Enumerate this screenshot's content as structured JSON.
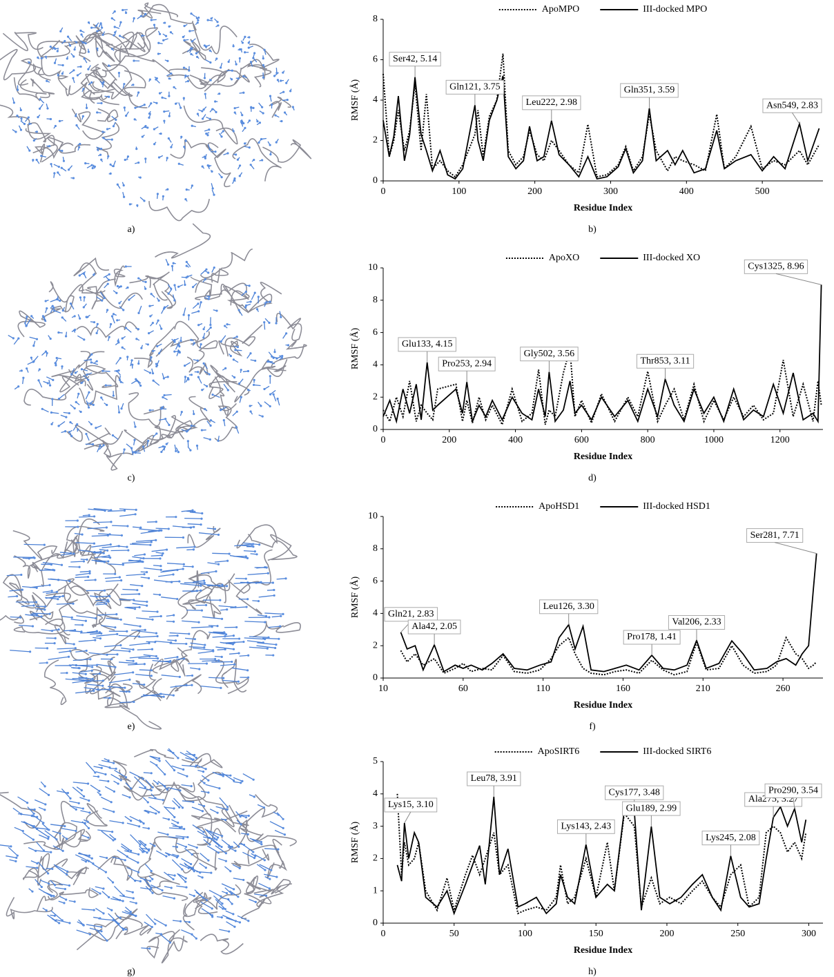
{
  "panel_labels": [
    "a)",
    "b)",
    "c)",
    "d)",
    "e)",
    "f)",
    "g)",
    "h)"
  ],
  "chart_data": [
    {
      "type": "line",
      "xlabel": "Residue Index",
      "ylabel": "RMSF (Å)",
      "xlim": [
        0,
        580
      ],
      "ylim": [
        0,
        8
      ],
      "xticks": [
        0,
        100,
        200,
        300,
        400,
        500
      ],
      "yticks": [
        0,
        2,
        4,
        6,
        8
      ],
      "x": [
        0,
        8,
        14,
        20,
        28,
        35,
        42,
        50,
        57,
        65,
        75,
        85,
        95,
        105,
        121,
        125,
        132,
        140,
        150,
        158,
        165,
        175,
        185,
        193,
        203,
        212,
        222,
        232,
        245,
        258,
        270,
        282,
        295,
        310,
        320,
        330,
        342,
        351,
        360,
        375,
        385,
        395,
        410,
        425,
        440,
        450,
        465,
        485,
        500,
        515,
        530,
        549,
        560,
        575
      ],
      "series": [
        {
          "name": "ApoMPO",
          "color": "#000000",
          "dash": "dotted",
          "values": [
            5.3,
            1.2,
            2.0,
            3.5,
            1.5,
            2.5,
            4.8,
            1.5,
            4.3,
            0.6,
            1.0,
            0.5,
            0.2,
            0.8,
            2.3,
            3.5,
            1.2,
            3.2,
            4.0,
            6.3,
            1.5,
            0.8,
            1.2,
            2.5,
            1.3,
            1.0,
            2.0,
            1.5,
            0.8,
            0.4,
            2.8,
            0.2,
            0.3,
            0.8,
            1.7,
            0.5,
            1.2,
            3.3,
            1.5,
            0.5,
            1.2,
            1.0,
            0.8,
            0.5,
            3.3,
            0.6,
            1.2,
            2.7,
            0.6,
            1.0,
            0.8,
            1.5,
            0.8,
            1.8
          ]
        },
        {
          "name": "III-docked MPO",
          "color": "#000000",
          "dash": "solid",
          "values": [
            3.0,
            1.2,
            2.2,
            4.2,
            1.0,
            2.3,
            5.14,
            2.3,
            1.5,
            0.5,
            1.5,
            0.3,
            0.1,
            0.6,
            3.75,
            2.0,
            1.0,
            3.0,
            4.0,
            5.2,
            1.2,
            0.6,
            1.0,
            2.7,
            1.0,
            1.2,
            2.98,
            1.3,
            0.8,
            0.2,
            1.2,
            0.1,
            0.2,
            0.7,
            1.6,
            0.4,
            1.0,
            3.59,
            1.0,
            1.5,
            0.8,
            1.5,
            0.4,
            0.6,
            2.5,
            0.6,
            1.0,
            1.3,
            0.5,
            1.2,
            0.6,
            2.83,
            1.0,
            2.6
          ]
        }
      ],
      "annotations": [
        {
          "label": "Ser42, 5.14",
          "x": 42,
          "y": 5.14
        },
        {
          "label": "Gln121, 3.75",
          "x": 121,
          "y": 3.75
        },
        {
          "label": "Leu222, 2.98",
          "x": 222,
          "y": 2.98
        },
        {
          "label": "Gln351, 3.59",
          "x": 351,
          "y": 3.59
        },
        {
          "label": "Asn549, 2.83",
          "x": 549,
          "y": 2.83
        }
      ]
    },
    {
      "type": "line",
      "xlabel": "Residue Index",
      "ylabel": "RMSF (Å)",
      "xlim": [
        0,
        1330
      ],
      "ylim": [
        0,
        10
      ],
      "xticks": [
        0,
        200,
        400,
        600,
        800,
        1000,
        1200
      ],
      "yticks": [
        0,
        2,
        4,
        6,
        8,
        10
      ],
      "x": [
        0,
        20,
        40,
        60,
        80,
        100,
        115,
        133,
        150,
        165,
        220,
        240,
        253,
        270,
        290,
        310,
        330,
        360,
        390,
        420,
        450,
        470,
        490,
        502,
        520,
        545,
        565,
        580,
        600,
        630,
        660,
        700,
        740,
        770,
        800,
        830,
        853,
        880,
        910,
        940,
        970,
        1000,
        1030,
        1060,
        1090,
        1120,
        1150,
        1180,
        1210,
        1240,
        1270,
        1300,
        1315,
        1325
      ],
      "series": [
        {
          "name": "ApoXO",
          "color": "#000000",
          "dash": "dotted",
          "values": [
            1.2,
            0.5,
            2.0,
            0.8,
            3.0,
            0.5,
            1.5,
            1.0,
            0.6,
            2.5,
            2.8,
            0.5,
            1.8,
            0.4,
            2.0,
            0.6,
            1.5,
            0.3,
            2.5,
            0.5,
            1.0,
            3.7,
            0.3,
            1.2,
            0.8,
            3.5,
            5.0,
            0.8,
            1.8,
            0.4,
            2.2,
            0.5,
            2.0,
            0.8,
            3.6,
            0.5,
            1.5,
            2.5,
            0.6,
            2.8,
            0.5,
            1.8,
            0.6,
            2.0,
            0.8,
            1.5,
            0.6,
            1.0,
            4.3,
            0.8,
            2.8,
            0.5,
            3.0,
            1.5
          ]
        },
        {
          "name": "III-docked XO",
          "color": "#000000",
          "dash": "solid",
          "values": [
            0.8,
            1.8,
            0.5,
            2.5,
            1.0,
            2.8,
            0.6,
            4.15,
            1.2,
            1.5,
            2.5,
            1.0,
            2.94,
            0.5,
            1.5,
            0.8,
            1.8,
            0.6,
            2.0,
            1.0,
            0.6,
            2.5,
            0.8,
            3.56,
            0.5,
            1.2,
            3.0,
            1.0,
            1.5,
            0.6,
            2.0,
            0.8,
            1.8,
            0.5,
            2.5,
            0.8,
            3.11,
            1.5,
            0.5,
            2.5,
            1.0,
            2.0,
            0.5,
            2.5,
            0.6,
            1.2,
            0.8,
            2.8,
            1.0,
            3.5,
            0.6,
            1.0,
            0.5,
            8.96
          ]
        }
      ],
      "annotations": [
        {
          "label": "Glu133, 4.15",
          "x": 133,
          "y": 4.15
        },
        {
          "label": "Pro253, 2.94",
          "x": 253,
          "y": 2.94
        },
        {
          "label": "Gly502, 3.56",
          "x": 502,
          "y": 3.56
        },
        {
          "label": "Thr853, 3.11",
          "x": 853,
          "y": 3.11
        },
        {
          "label": "Cys1325, 8.96",
          "x": 1325,
          "y": 8.96
        }
      ]
    },
    {
      "type": "line",
      "xlabel": "Residue Index",
      "ylabel": "RMSF (Å)",
      "xlim": [
        10,
        285
      ],
      "ylim": [
        0,
        10
      ],
      "xticks": [
        10,
        60,
        110,
        160,
        210,
        260
      ],
      "yticks": [
        0,
        2,
        4,
        6,
        8,
        10
      ],
      "x": [
        21,
        25,
        30,
        35,
        42,
        48,
        55,
        60,
        65,
        72,
        78,
        85,
        92,
        100,
        108,
        115,
        120,
        126,
        130,
        135,
        140,
        148,
        155,
        162,
        170,
        178,
        185,
        192,
        200,
        206,
        212,
        220,
        228,
        235,
        242,
        250,
        256,
        262,
        268,
        272,
        276,
        279,
        281
      ],
      "series": [
        {
          "name": "ApoHSD1",
          "color": "#000000",
          "dash": "dotted",
          "values": [
            1.7,
            1.0,
            1.5,
            0.8,
            1.2,
            0.3,
            0.6,
            0.9,
            0.4,
            0.6,
            0.5,
            1.4,
            0.4,
            0.3,
            0.5,
            1.2,
            2.0,
            2.5,
            1.5,
            0.6,
            0.3,
            0.2,
            0.4,
            0.5,
            0.3,
            1.1,
            0.5,
            0.2,
            0.4,
            2.2,
            0.5,
            0.6,
            2.0,
            0.8,
            0.3,
            0.4,
            0.8,
            2.5,
            1.5,
            1.2,
            0.6,
            0.8,
            1.0
          ]
        },
        {
          "name": "III-docked HSD1",
          "color": "#000000",
          "dash": "solid",
          "values": [
            2.83,
            1.8,
            2.0,
            0.5,
            2.05,
            0.4,
            0.8,
            0.6,
            0.8,
            0.5,
            0.9,
            1.5,
            0.6,
            0.5,
            0.8,
            1.0,
            2.5,
            3.3,
            1.8,
            3.2,
            0.5,
            0.4,
            0.6,
            0.8,
            0.5,
            1.41,
            0.6,
            0.5,
            0.8,
            2.33,
            0.6,
            0.9,
            2.3,
            1.5,
            0.5,
            0.6,
            1.0,
            1.2,
            0.8,
            1.5,
            2.0,
            5.5,
            7.71
          ]
        }
      ],
      "annotations": [
        {
          "label": "Gln21, 2.83",
          "x": 21,
          "y": 2.83
        },
        {
          "label": "Ala42, 2.05",
          "x": 42,
          "y": 2.05
        },
        {
          "label": "Leu126, 3.30",
          "x": 126,
          "y": 3.3
        },
        {
          "label": "Pro178, 1.41",
          "x": 178,
          "y": 1.41
        },
        {
          "label": "Val206, 2.33",
          "x": 206,
          "y": 2.33
        },
        {
          "label": "Ser281, 7.71",
          "x": 281,
          "y": 7.71
        }
      ]
    },
    {
      "type": "line",
      "xlabel": "Residue Index",
      "ylabel": "RMSF (Å)",
      "xlim": [
        0,
        310
      ],
      "ylim": [
        0,
        5
      ],
      "xticks": [
        0,
        50,
        100,
        150,
        200,
        250,
        300
      ],
      "yticks": [
        0,
        1,
        2,
        3,
        4,
        5
      ],
      "x": [
        10,
        13,
        15,
        18,
        22,
        25,
        30,
        38,
        45,
        50,
        58,
        63,
        68,
        72,
        78,
        82,
        88,
        95,
        100,
        108,
        115,
        122,
        125,
        130,
        135,
        143,
        150,
        158,
        163,
        170,
        177,
        182,
        189,
        195,
        202,
        210,
        218,
        225,
        232,
        238,
        245,
        252,
        258,
        265,
        270,
        275,
        280,
        285,
        290,
        295,
        298
      ],
      "series": [
        {
          "name": "ApoSIRT6",
          "color": "#000000",
          "dash": "dotted",
          "values": [
            4.0,
            1.5,
            2.5,
            1.8,
            2.0,
            2.5,
            1.0,
            0.4,
            1.4,
            0.4,
            1.5,
            2.1,
            1.5,
            2.0,
            2.8,
            1.5,
            1.8,
            0.3,
            0.4,
            0.5,
            0.4,
            0.8,
            1.8,
            0.6,
            0.8,
            2.0,
            0.8,
            2.5,
            1.0,
            3.4,
            3.0,
            0.5,
            1.4,
            0.6,
            0.8,
            0.6,
            1.0,
            1.3,
            0.8,
            0.5,
            1.5,
            1.8,
            0.5,
            0.8,
            2.8,
            3.0,
            2.8,
            2.2,
            2.5,
            2.0,
            2.8
          ]
        },
        {
          "name": "III-docked SIRT6",
          "color": "#000000",
          "dash": "solid",
          "values": [
            1.8,
            1.3,
            3.1,
            2.0,
            2.8,
            2.5,
            0.8,
            0.5,
            1.0,
            0.3,
            1.2,
            1.8,
            2.4,
            1.2,
            3.91,
            1.5,
            2.3,
            0.5,
            0.6,
            0.8,
            0.3,
            0.6,
            1.5,
            0.8,
            0.6,
            2.43,
            0.8,
            1.2,
            1.0,
            3.5,
            3.48,
            0.4,
            2.99,
            0.8,
            0.6,
            0.8,
            1.2,
            1.5,
            0.8,
            0.4,
            2.08,
            0.8,
            0.5,
            0.6,
            2.0,
            3.27,
            3.6,
            3.0,
            3.54,
            2.5,
            3.2
          ]
        }
      ],
      "annotations": [
        {
          "label": "Lys15, 3.10",
          "x": 15,
          "y": 3.1
        },
        {
          "label": "Leu78, 3.91",
          "x": 78,
          "y": 3.91
        },
        {
          "label": "Lys143, 2.43",
          "x": 143,
          "y": 2.43
        },
        {
          "label": "Cys177, 3.48",
          "x": 177,
          "y": 3.48
        },
        {
          "label": "Glu189, 2.99",
          "x": 189,
          "y": 2.99
        },
        {
          "label": "Lys245, 2.08",
          "x": 245,
          "y": 2.08
        },
        {
          "label": "Ala275, 3.27",
          "x": 275,
          "y": 3.27
        },
        {
          "label": "Pro290, 3.54",
          "x": 290,
          "y": 3.54
        }
      ]
    }
  ]
}
